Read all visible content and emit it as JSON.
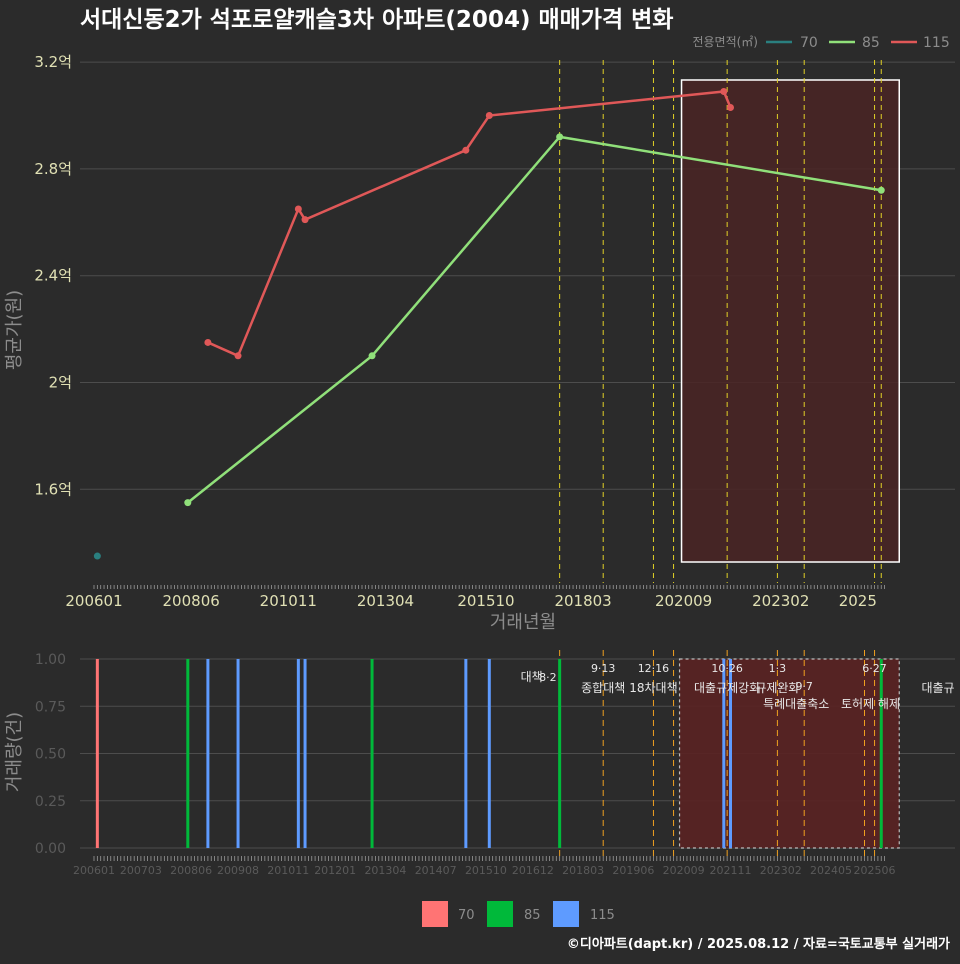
{
  "colors": {
    "background": "#2b2b2b",
    "grid": "#4d4d4d",
    "tick_text": "#e0e0b4",
    "axis_title": "#8c8c8c",
    "title": "#ffffff",
    "series_top": {
      "70": "#2a7f7f",
      "85": "#90e07a",
      "115": "#e05858"
    },
    "series_bottom": {
      "70": "#ff7474",
      "85": "#00b93a",
      "115": "#5e9bff"
    },
    "policy_line": "#e0d026",
    "policy_line_bottom": "#f0a020",
    "highlight_fill": "#4a2424",
    "highlight_fill_bottom": "#5a2222"
  },
  "chart_data": [
    {
      "type": "line",
      "title": "서대신동2가 석포로얄캐슬3차 아파트(2004) 매매가격 변화",
      "xlabel": "거래년월",
      "ylabel": "평균가(원)",
      "ylim": [
        1.4,
        3.3
      ],
      "y_unit": "억",
      "y_ticks": [
        1.6,
        2.0,
        2.4,
        2.8,
        3.2
      ],
      "y_tick_labels": [
        "1.6억",
        "2억",
        "2.4억",
        "2.8억",
        "3.2억"
      ],
      "x_tick_labels": [
        "200601",
        "200806",
        "201011",
        "201304",
        "201510",
        "201803",
        "202009",
        "202302",
        "2025"
      ],
      "legend_title": "전용면적(㎡)",
      "legend_position": "top-right",
      "series": [
        {
          "name": "70",
          "points": [
            [
              "2006-02",
              1.35
            ]
          ]
        },
        {
          "name": "85",
          "points": [
            [
              "2008-05",
              1.55
            ],
            [
              "2012-12",
              2.1
            ],
            [
              "2017-08",
              2.92
            ],
            [
              "2025-08",
              2.72
            ]
          ]
        },
        {
          "name": "115",
          "points": [
            [
              "2008-11",
              2.15
            ],
            [
              "2009-08",
              2.1
            ],
            [
              "2011-02",
              2.65
            ],
            [
              "2011-04",
              2.61
            ],
            [
              "2015-04",
              2.87
            ],
            [
              "2015-11",
              3.0
            ],
            [
              "2021-09",
              3.09
            ],
            [
              "2021-11",
              3.03
            ]
          ]
        }
      ],
      "policy_lines": [
        "2017-08",
        "2018-09",
        "2019-12",
        "2020-06",
        "2021-10",
        "2023-01",
        "2023-09",
        "2025-06",
        "2025-08"
      ],
      "highlight_range": [
        "2020-06",
        "2025-08"
      ]
    },
    {
      "type": "bar",
      "ylabel": "거래량(건)",
      "ylim": [
        0,
        1.0
      ],
      "y_ticks": [
        0,
        0.25,
        0.5,
        0.75,
        1.0
      ],
      "y_tick_labels": [
        "0.00",
        "0.25",
        "0.50",
        "0.75",
        "1.00"
      ],
      "x_tick_labels": [
        "200601",
        "200703",
        "200806",
        "200908",
        "201011",
        "201201",
        "201304",
        "201407",
        "201510",
        "201612",
        "201803",
        "201906",
        "202009",
        "202111",
        "202302",
        "202405",
        "202506"
      ],
      "bars": [
        {
          "series": "70",
          "x": "2006-02",
          "value": 1
        },
        {
          "series": "85",
          "x": "2008-05",
          "value": 1
        },
        {
          "series": "115",
          "x": "2008-11",
          "value": 1
        },
        {
          "series": "115",
          "x": "2009-08",
          "value": 1
        },
        {
          "series": "115",
          "x": "2011-02",
          "value": 1
        },
        {
          "series": "115",
          "x": "2011-04",
          "value": 1
        },
        {
          "series": "85",
          "x": "2012-12",
          "value": 1
        },
        {
          "series": "115",
          "x": "2015-04",
          "value": 1
        },
        {
          "series": "115",
          "x": "2015-11",
          "value": 1
        },
        {
          "series": "85",
          "x": "2017-08",
          "value": 1
        },
        {
          "series": "115",
          "x": "2021-09",
          "value": 1
        },
        {
          "series": "115",
          "x": "2021-11",
          "value": 1
        },
        {
          "series": "85",
          "x": "2025-08",
          "value": 1
        }
      ],
      "policy_annotations": [
        {
          "x": "2017-08",
          "date": "8·2",
          "label": "대책"
        },
        {
          "x": "2018-09",
          "date": "9·13",
          "label": "종합대책"
        },
        {
          "x": "2019-12",
          "date": "12·16",
          "label": "18차대책"
        },
        {
          "x": "2020-06",
          "date": "",
          "label": ""
        },
        {
          "x": "2021-10",
          "date": "10·26",
          "label": "대출규제강화"
        },
        {
          "x": "2023-01",
          "date": "1·3",
          "label": "규제완화"
        },
        {
          "x": "2023-09",
          "date": "9·7",
          "label": "특례대출축소"
        },
        {
          "x": "2025-03",
          "date": "",
          "label": "토허제 해제"
        },
        {
          "x": "2025-06",
          "date": "6·27",
          "label": "대출규"
        }
      ],
      "highlight_range": [
        "2020-06",
        "2025-08"
      ],
      "legend": [
        "70",
        "85",
        "115"
      ],
      "legend_position": "bottom"
    }
  ],
  "footer": {
    "credit": "©디아파트(dapt.kr) / 2025.08.12 / 자료=국토교통부 실거래가"
  }
}
